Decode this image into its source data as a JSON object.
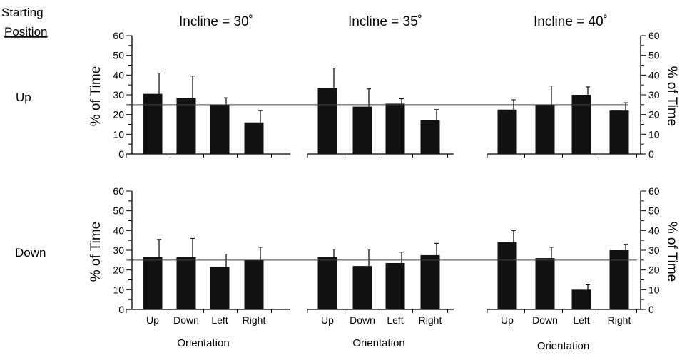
{
  "starting_position_label": [
    "Starting",
    "Position"
  ],
  "row_labels": [
    "Up",
    "Down"
  ],
  "column_titles": [
    "Incline = 30˚",
    "Incline = 35˚",
    "Incline = 40˚"
  ],
  "ylabel": "% of Time",
  "xlabel": "Orientation",
  "y_ticks": [
    "0",
    "10",
    "20",
    "30",
    "40",
    "50",
    "60"
  ],
  "colors": {
    "bar": "#111111",
    "axis": "#000000",
    "reference_line": "#444444"
  },
  "chart_data": [
    {
      "type": "bar",
      "title": "Incline = 30˚",
      "starting_position": "Up",
      "categories": [
        "Up",
        "Down",
        "Left",
        "Right"
      ],
      "values": [
        30.5,
        28.5,
        25,
        16
      ],
      "error": [
        10.5,
        11,
        3.5,
        6
      ],
      "ylim": [
        0,
        60
      ],
      "reference_line": 25,
      "ylabel": "% of Time"
    },
    {
      "type": "bar",
      "title": "Incline = 35˚",
      "starting_position": "Up",
      "categories": [
        "Up",
        "Down",
        "Left",
        "Right"
      ],
      "values": [
        33.5,
        24,
        25.5,
        17
      ],
      "error": [
        10,
        9,
        2.5,
        5.5
      ],
      "ylim": [
        0,
        60
      ],
      "reference_line": 25
    },
    {
      "type": "bar",
      "title": "Incline = 40˚",
      "starting_position": "Up",
      "categories": [
        "Up",
        "Down",
        "Left",
        "Right"
      ],
      "values": [
        22.5,
        25,
        30,
        22
      ],
      "error": [
        5,
        9.5,
        4,
        4
      ],
      "ylim": [
        0,
        60
      ],
      "reference_line": 25,
      "ylabel": "% of Time"
    },
    {
      "type": "bar",
      "starting_position": "Down",
      "categories": [
        "Up",
        "Down",
        "Left",
        "Right"
      ],
      "values": [
        26.5,
        26.5,
        21.5,
        25
      ],
      "error": [
        9,
        9.5,
        6.5,
        6.5
      ],
      "ylim": [
        0,
        60
      ],
      "reference_line": 25,
      "xlabel": "Orientation",
      "ylabel": "% of Time"
    },
    {
      "type": "bar",
      "starting_position": "Down",
      "categories": [
        "Up",
        "Down",
        "Left",
        "Right"
      ],
      "values": [
        26.5,
        22,
        23.5,
        27.5
      ],
      "error": [
        4,
        8.5,
        5.5,
        6
      ],
      "ylim": [
        0,
        60
      ],
      "reference_line": 25,
      "xlabel": "Orientation"
    },
    {
      "type": "bar",
      "starting_position": "Down",
      "categories": [
        "Up",
        "Down",
        "Left",
        "Right"
      ],
      "values": [
        34,
        26,
        10,
        30
      ],
      "error": [
        6,
        5.5,
        2.5,
        3
      ],
      "ylim": [
        0,
        60
      ],
      "reference_line": 25,
      "xlabel": "Orientation",
      "ylabel": "% of Time"
    }
  ]
}
